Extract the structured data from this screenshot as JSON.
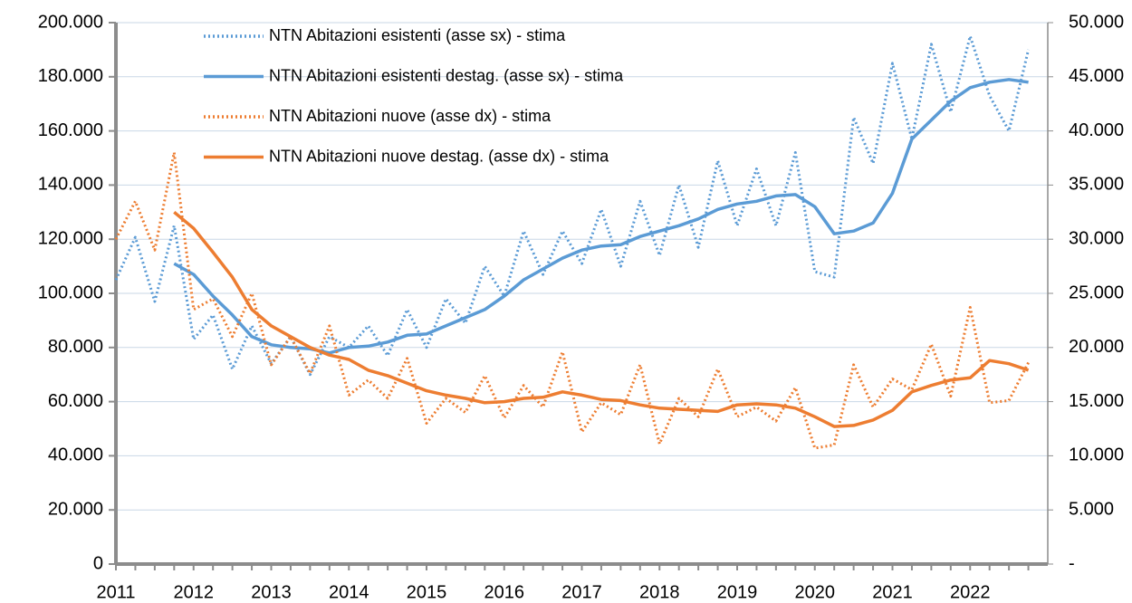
{
  "chart_data": {
    "type": "line",
    "categories": [
      "2011",
      null,
      null,
      null,
      "2012",
      null,
      null,
      null,
      "2013",
      null,
      null,
      null,
      "2014",
      null,
      null,
      null,
      "2015",
      null,
      null,
      null,
      "2016",
      null,
      null,
      null,
      "2017",
      null,
      null,
      null,
      "2018",
      null,
      null,
      null,
      "2019",
      null,
      null,
      null,
      "2020",
      null,
      null,
      null,
      "2021",
      null,
      null,
      null,
      "2022",
      null,
      null,
      null
    ],
    "series": [
      {
        "name": "NTN Abitazioni esistenti (asse sx) - stima",
        "color": "#5b9bd5",
        "style": "dotted",
        "axis": "y",
        "values": [
          105000,
          120700,
          97000,
          125000,
          83000,
          92000,
          72000,
          88000,
          74000,
          84000,
          70000,
          84000,
          80000,
          88000,
          77000,
          94000,
          80000,
          98000,
          89000,
          110000,
          99000,
          123000,
          107000,
          123000,
          111000,
          131000,
          110000,
          134000,
          114000,
          140000,
          117000,
          149000,
          125000,
          146000,
          125000,
          152000,
          108000,
          106000,
          165000,
          148000,
          185000,
          157000,
          192000,
          167000,
          195000,
          173000,
          160000,
          190000
        ]
      },
      {
        "name": "NTN Abitazioni esistenti destag. (asse sx) - stima",
        "color": "#5b9bd5",
        "style": "solid",
        "axis": "y",
        "values": [
          null,
          null,
          null,
          111000,
          107000,
          99000,
          92000,
          84000,
          81000,
          80000,
          79500,
          78000,
          80000,
          80500,
          82000,
          84500,
          85000,
          88000,
          91000,
          94000,
          99000,
          105000,
          109000,
          113000,
          116000,
          117500,
          118000,
          121000,
          123000,
          125000,
          127500,
          131000,
          133000,
          134000,
          136000,
          136500,
          132000,
          122000,
          123000,
          126000,
          137000,
          157000,
          164000,
          171000,
          176000,
          178000,
          179000,
          178000
        ]
      },
      {
        "name": "NTN Abitazioni nuove (asse dx) - stima",
        "color": "#ed7d31",
        "style": "dotted",
        "axis": "y2",
        "values": [
          30000,
          33500,
          29000,
          38000,
          23500,
          24500,
          21000,
          25000,
          18400,
          21000,
          17600,
          22000,
          15600,
          17000,
          15300,
          19000,
          13000,
          15300,
          14000,
          17400,
          13500,
          16500,
          14500,
          19600,
          12200,
          14900,
          13800,
          18400,
          11100,
          15300,
          13600,
          18000,
          13600,
          14500,
          13200,
          16300,
          10700,
          11000,
          18400,
          14500,
          17100,
          16100,
          20300,
          15500,
          23700,
          14900,
          15100,
          18600
        ]
      },
      {
        "name": "NTN Abitazioni nuove destag. (asse dx) - stima",
        "color": "#ed7d31",
        "style": "solid",
        "axis": "y2",
        "values": [
          null,
          null,
          null,
          32500,
          31000,
          28800,
          26500,
          23500,
          22000,
          21000,
          20000,
          19300,
          18900,
          17900,
          17400,
          16700,
          16000,
          15600,
          15300,
          14900,
          15000,
          15300,
          15400,
          15900,
          15600,
          15200,
          15100,
          14700,
          14400,
          14300,
          14200,
          14100,
          14700,
          14800,
          14700,
          14400,
          13600,
          12700,
          12800,
          13300,
          14200,
          15900,
          16500,
          17000,
          17200,
          18800,
          18500,
          17900
        ]
      }
    ],
    "ylim": [
      0,
      200000
    ],
    "yticks": [
      0,
      {
        "value": 20000,
        "label": "20.000"
      },
      {
        "value": 40000,
        "label": "40.000"
      },
      {
        "value": 60000,
        "label": "60.000"
      },
      {
        "value": 80000,
        "label": "80.000"
      },
      {
        "value": 100000,
        "label": "100.000"
      },
      {
        "value": 120000,
        "label": "120.000"
      },
      {
        "value": 140000,
        "label": "140.000"
      },
      {
        "value": 160000,
        "label": "160.000"
      },
      {
        "value": 180000,
        "label": "180.000"
      },
      {
        "value": 200000,
        "label": "200.000"
      }
    ],
    "y2lim": [
      0,
      50000
    ],
    "y2ticks": [
      {
        "value": 0,
        "label": "-"
      },
      {
        "value": 5000,
        "label": "5.000"
      },
      {
        "value": 10000,
        "label": "10.000"
      },
      {
        "value": 15000,
        "label": "15.000"
      },
      {
        "value": 20000,
        "label": "20.000"
      },
      {
        "value": 25000,
        "label": "25.000"
      },
      {
        "value": 30000,
        "label": "30.000"
      },
      {
        "value": 35000,
        "label": "35.000"
      },
      {
        "value": 40000,
        "label": "40.000"
      },
      {
        "value": 45000,
        "label": "45.000"
      },
      {
        "value": 50000,
        "label": "50.000"
      }
    ],
    "grid": true,
    "legend": "top"
  }
}
